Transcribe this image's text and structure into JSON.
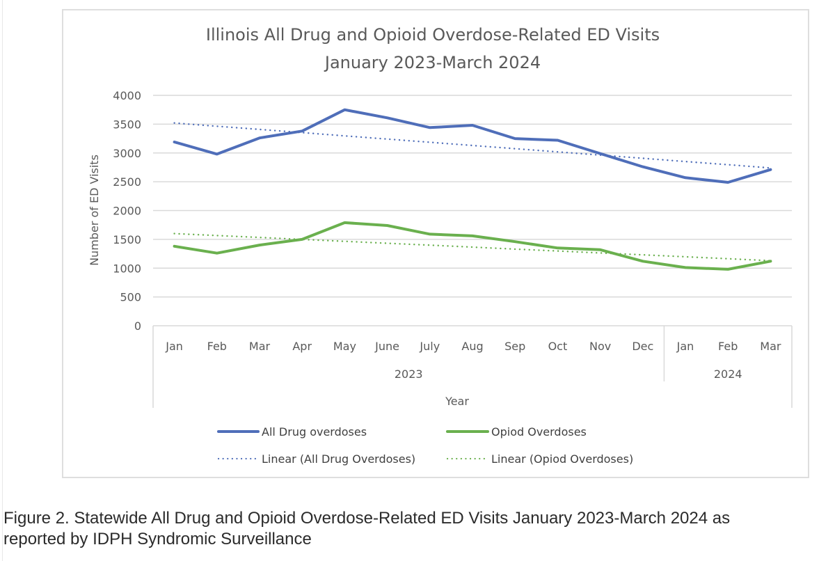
{
  "chart_data": {
    "type": "line",
    "title": [
      "Illinois All Drug and Opioid Overdose-Related ED Visits",
      "January 2023-March 2024"
    ],
    "xlabel": "Year",
    "ylabel": "Number of ED Visits",
    "ylim": [
      0,
      4000
    ],
    "yticks": [
      0,
      500,
      1000,
      1500,
      2000,
      2500,
      3000,
      3500,
      4000
    ],
    "grid": true,
    "legend_position": "bottom",
    "categories": [
      "Jan",
      "Feb",
      "Mar",
      "Apr",
      "May",
      "June",
      "July",
      "Aug",
      "Sep",
      "Oct",
      "Nov",
      "Dec",
      "Jan",
      "Feb",
      "Mar"
    ],
    "category_groups": [
      {
        "label": "2023",
        "count": 12
      },
      {
        "label": "2024",
        "count": 3
      }
    ],
    "series": [
      {
        "name": "All Drug overdoses",
        "style": "solid",
        "color": "#4F6EB9",
        "values": [
          3190,
          2980,
          3260,
          3380,
          3750,
          3610,
          3440,
          3480,
          3250,
          3220,
          2990,
          2760,
          2570,
          2490,
          2710
        ]
      },
      {
        "name": "Opiod Overdoses",
        "style": "solid",
        "color": "#6AB04E",
        "values": [
          1380,
          1260,
          1400,
          1500,
          1790,
          1740,
          1590,
          1560,
          1460,
          1350,
          1320,
          1120,
          1010,
          980,
          1120
        ]
      },
      {
        "name": "Linear (All Drug Overdoses)",
        "style": "dotted",
        "color": "#4F6EB9",
        "trend_of": 0,
        "values": [
          3520,
          3464,
          3409,
          3353,
          3297,
          3241,
          3186,
          3130,
          3074,
          3019,
          2963,
          2907,
          2851,
          2796,
          2740
        ]
      },
      {
        "name": "Linear (Opiod Overdoses)",
        "style": "dotted",
        "color": "#6AB04E",
        "trend_of": 1,
        "values": [
          1600,
          1566,
          1533,
          1499,
          1466,
          1432,
          1399,
          1365,
          1331,
          1298,
          1264,
          1231,
          1197,
          1164,
          1130
        ]
      }
    ]
  },
  "caption": {
    "line1": "Figure 2. Statewide All Drug and Opioid Overdose-Related ED Visits January 2023-March 2024 as",
    "line2": "reported by IDPH Syndromic Surveillance"
  }
}
